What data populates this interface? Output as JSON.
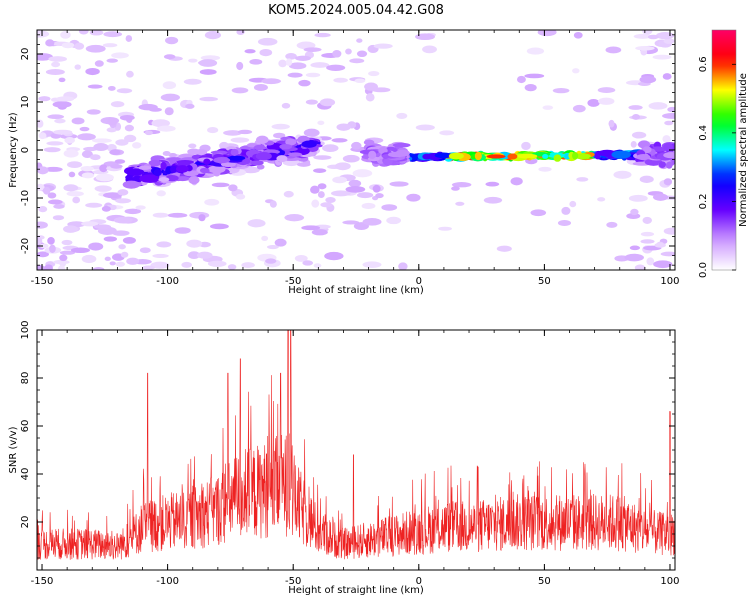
{
  "figure_title": "KOM5.2024.005.04.42.G08",
  "chart_data": [
    {
      "type": "heatmap",
      "title": "",
      "xlabel": "Height of straight line (km)",
      "ylabel": "Frequency (Hz)",
      "xlim": [
        -152,
        102
      ],
      "ylim": [
        -25,
        25
      ],
      "x_ticks": [
        -150,
        -100,
        -50,
        0,
        50,
        100
      ],
      "x_tick_labels": [
        "-150",
        "-100",
        "-50",
        "0",
        "50",
        "100"
      ],
      "y_ticks": [
        -20,
        -10,
        0,
        10,
        20
      ],
      "y_tick_labels": [
        "-20",
        "-10",
        "0",
        "10",
        "20"
      ],
      "colorbar": {
        "label": "Normalized spectral amplitude",
        "range": [
          0,
          0.7
        ],
        "ticks": [
          0.0,
          0.2,
          0.4,
          0.6
        ],
        "tick_labels": [
          "0.0",
          "0.2",
          "0.4",
          "0.6"
        ],
        "colormap": [
          "#ffffff",
          "#cc99ff",
          "#6600ff",
          "#0000ff",
          "#00ffff",
          "#00ff00",
          "#ffff00",
          "#ff0000",
          "#ff0066"
        ]
      },
      "features": [
        {
          "name": "",
          "x_range": [
            -115,
            -42
          ],
          "freq_start": -5.5,
          "freq_end": 1.0,
          "peak_amplitude": 0.25
        },
        {
          "name": "",
          "x_range": [
            -8,
            88
          ],
          "freq_start": -1.5,
          "freq_end": -1.0,
          "peak_amplitude": 0.6
        }
      ],
      "grid": false
    },
    {
      "type": "line",
      "title": "",
      "xlabel": "Height of straight line (km)",
      "ylabel": "SNR (v/v)",
      "xlim": [
        -152,
        102
      ],
      "ylim": [
        0,
        100
      ],
      "x_ticks": [
        -150,
        -100,
        -50,
        0,
        50,
        100
      ],
      "x_tick_labels": [
        "-150",
        "-100",
        "-50",
        "0",
        "50",
        "100"
      ],
      "y_ticks": [
        20,
        40,
        60,
        80,
        100
      ],
      "y_tick_labels": [
        "20",
        "40",
        "60",
        "80",
        "100"
      ],
      "line_color": "#ee2222",
      "envelope_x": [
        -152,
        -130,
        -120,
        -115,
        -110,
        -100,
        -90,
        -80,
        -72,
        -65,
        -58,
        -53,
        -48,
        -40,
        -30,
        -20,
        -10,
        0,
        10,
        20,
        30,
        40,
        50,
        60,
        70,
        80,
        90,
        100,
        102
      ],
      "envelope_y": [
        12,
        12,
        11,
        14,
        20,
        22,
        24,
        28,
        34,
        36,
        38,
        40,
        30,
        18,
        12,
        14,
        16,
        18,
        20,
        20,
        21,
        22,
        22,
        22,
        22,
        22,
        18,
        16,
        18
      ],
      "peaks": [
        {
          "x": -108,
          "y": 82
        },
        {
          "x": -76,
          "y": 82
        },
        {
          "x": -71,
          "y": 88
        },
        {
          "x": -55,
          "y": 82
        },
        {
          "x": -52,
          "y": 100
        },
        {
          "x": -51,
          "y": 100
        },
        {
          "x": -26,
          "y": 48
        },
        {
          "x": 100,
          "y": 66
        }
      ],
      "grid": false
    }
  ]
}
